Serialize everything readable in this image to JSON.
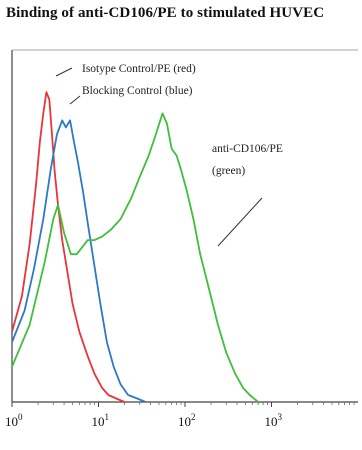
{
  "chart_data": {
    "type": "line",
    "title": "Binding of anti-CD106/PE to stimulated HUVEC",
    "xlabel": "",
    "ylabel": "",
    "x_scale": "log",
    "xlim": [
      1,
      10000
    ],
    "ylim": [
      0,
      100
    ],
    "grid": false,
    "x_ticks": [
      {
        "base": "10",
        "exp": "0",
        "value": 1
      },
      {
        "base": "10",
        "exp": "1",
        "value": 10
      },
      {
        "base": "10",
        "exp": "2",
        "value": 100
      },
      {
        "base": "10",
        "exp": "3",
        "value": 1000
      }
    ],
    "series": [
      {
        "name": "Isotype Control/PE (red)",
        "color": "#e8343a",
        "points": [
          [
            1.0,
            20
          ],
          [
            1.3,
            30
          ],
          [
            1.6,
            45
          ],
          [
            1.9,
            62
          ],
          [
            2.1,
            74
          ],
          [
            2.3,
            82
          ],
          [
            2.5,
            88
          ],
          [
            2.7,
            86
          ],
          [
            2.9,
            76
          ],
          [
            3.1,
            66
          ],
          [
            3.4,
            56
          ],
          [
            3.8,
            46
          ],
          [
            4.3,
            38
          ],
          [
            5.0,
            28
          ],
          [
            6.0,
            20
          ],
          [
            7.5,
            13
          ],
          [
            9.0,
            8
          ],
          [
            11,
            4
          ],
          [
            13,
            2
          ],
          [
            16,
            1
          ],
          [
            20,
            0
          ]
        ]
      },
      {
        "name": "Blocking Control (blue)",
        "color": "#2f78c8",
        "points": [
          [
            1.0,
            17
          ],
          [
            1.4,
            26
          ],
          [
            1.8,
            38
          ],
          [
            2.3,
            52
          ],
          [
            2.8,
            66
          ],
          [
            3.3,
            76
          ],
          [
            3.8,
            80
          ],
          [
            4.2,
            78
          ],
          [
            4.7,
            80
          ],
          [
            5.2,
            74
          ],
          [
            5.8,
            68
          ],
          [
            6.6,
            60
          ],
          [
            7.6,
            50
          ],
          [
            8.8,
            40
          ],
          [
            10.5,
            28
          ],
          [
            12.5,
            17
          ],
          [
            15,
            10
          ],
          [
            18,
            5
          ],
          [
            22,
            2
          ],
          [
            28,
            1
          ],
          [
            35,
            0
          ]
        ]
      },
      {
        "name": "anti-CD106/PE (green)",
        "color": "#3fbf3a",
        "points": [
          [
            1.0,
            10
          ],
          [
            1.6,
            22
          ],
          [
            2.4,
            40
          ],
          [
            3.0,
            52
          ],
          [
            3.4,
            56
          ],
          [
            4.0,
            48
          ],
          [
            4.8,
            42
          ],
          [
            5.6,
            42
          ],
          [
            6.5,
            44
          ],
          [
            7.5,
            46
          ],
          [
            9.0,
            46
          ],
          [
            11,
            47
          ],
          [
            14,
            49
          ],
          [
            18,
            52
          ],
          [
            24,
            58
          ],
          [
            30,
            64
          ],
          [
            38,
            70
          ],
          [
            46,
            76
          ],
          [
            55,
            82
          ],
          [
            62,
            79
          ],
          [
            70,
            72
          ],
          [
            80,
            70
          ],
          [
            90,
            66
          ],
          [
            105,
            60
          ],
          [
            125,
            52
          ],
          [
            150,
            42
          ],
          [
            190,
            32
          ],
          [
            240,
            22
          ],
          [
            300,
            14
          ],
          [
            380,
            8
          ],
          [
            470,
            4
          ],
          [
            560,
            2
          ],
          [
            700,
            0
          ]
        ]
      }
    ],
    "annotations": [
      {
        "label": "Isotype Control/PE (red)"
      },
      {
        "label": "Blocking Control (blue)"
      },
      {
        "label": "anti-CD106/PE",
        "label2": "(green)"
      }
    ]
  }
}
